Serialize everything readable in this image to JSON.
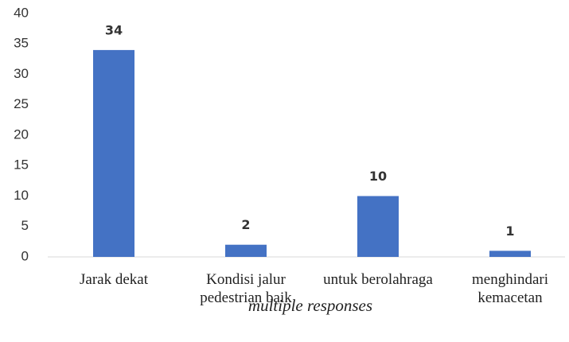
{
  "chart_data": {
    "type": "bar",
    "categories": [
      "Jarak dekat",
      "Kondisi jalur pedestrian baik",
      "untuk berolahraga",
      "menghindari kemacetan"
    ],
    "values": [
      34,
      2,
      10,
      1
    ],
    "color": "#4472c4",
    "xlabel": "multiple responses",
    "ylim": [
      0,
      40
    ],
    "yticks": [
      0,
      5,
      10,
      15,
      20,
      25,
      30,
      35,
      40
    ],
    "grid": false
  }
}
